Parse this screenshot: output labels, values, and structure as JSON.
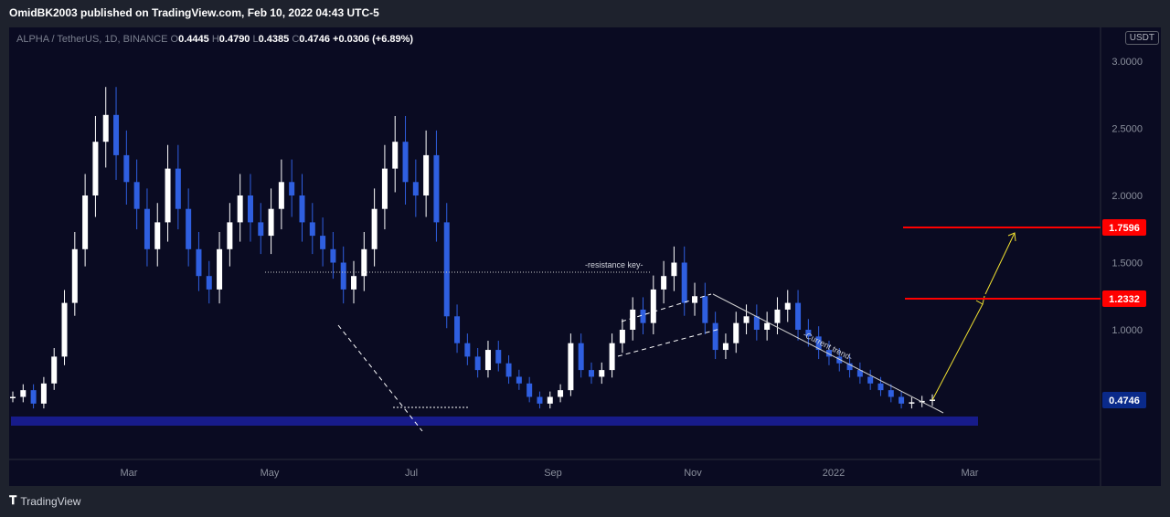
{
  "header": {
    "publisher": "OmidBK2003 published on TradingView.com, Feb 10, 2022 04:43 UTC-5"
  },
  "legend": {
    "symbol": "ALPHA / TetherUS, 1D, BINANCE",
    "open_label": "O",
    "open": "0.4445",
    "high_label": "H",
    "high": "0.4790",
    "low_label": "L",
    "low": "0.4385",
    "close_label": "C",
    "close": "0.4746",
    "change": "+0.0306 (+6.89%)"
  },
  "currency_button": "USDT",
  "footer": {
    "brand": "TradingView"
  },
  "chart_data": {
    "type": "candlestick",
    "y_axis_ticks": [
      "3.0000",
      "2.5000",
      "2.0000",
      "1.5000",
      "1.0000"
    ],
    "x_axis_ticks": [
      "Mar",
      "May",
      "Jul",
      "Sep",
      "Nov",
      "2022",
      "Mar"
    ],
    "price_levels": [
      {
        "label": "1.7596",
        "value": 1.7596,
        "color": "#ff0000"
      },
      {
        "label": "1.2332",
        "value": 1.2332,
        "color": "#ff0000"
      }
    ],
    "last_price": {
      "label": "0.4746",
      "value": 0.4746
    },
    "annotations": [
      {
        "text": "-resistance key-"
      },
      {
        "text": "-Current trend-"
      }
    ],
    "series": [
      {
        "values": [
          0.5,
          0.55,
          0.45,
          0.6,
          0.8,
          1.2,
          1.6,
          2.0,
          2.4,
          2.6,
          2.3,
          2.1,
          1.9,
          1.6,
          1.8,
          2.2,
          1.9,
          1.6,
          1.4,
          1.3,
          1.6,
          1.8,
          2.0,
          1.8,
          1.7,
          1.9,
          2.1,
          2.0,
          1.8,
          1.7,
          1.6,
          1.5,
          1.3,
          1.4,
          1.6,
          1.9,
          2.2,
          2.4,
          2.1,
          2.0,
          2.3,
          1.8,
          1.1,
          0.9,
          0.8,
          0.7,
          0.85,
          0.75,
          0.65,
          0.6,
          0.5,
          0.45,
          0.5,
          0.55,
          0.9,
          0.7,
          0.65,
          0.7,
          0.9,
          1.0,
          1.15,
          1.05,
          1.3,
          1.4,
          1.5,
          1.2,
          1.25,
          1.05,
          0.85,
          0.9,
          1.05,
          1.1,
          1.0,
          1.05,
          1.15,
          1.2,
          1.0,
          0.95,
          0.85,
          0.8,
          0.75,
          0.7,
          0.65,
          0.6,
          0.55,
          0.5,
          0.45,
          0.46,
          0.47,
          0.48
        ]
      }
    ]
  }
}
